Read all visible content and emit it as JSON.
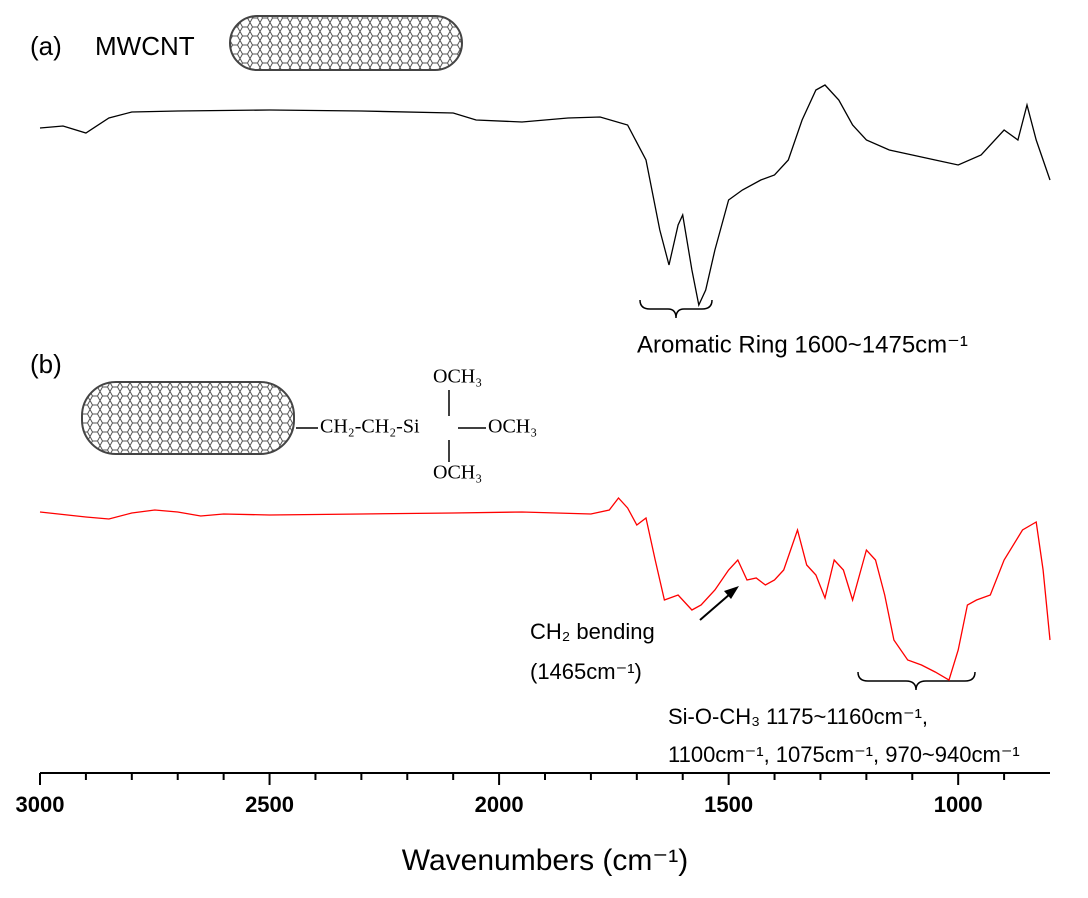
{
  "chart_data": {
    "type": "line",
    "xlabel": "Wavenumbers (cm⁻¹)",
    "xlim": [
      3000,
      800
    ],
    "xticks": [
      3000,
      2500,
      2000,
      1500,
      1000
    ],
    "xminorticks": [
      2900,
      2800,
      2700,
      2600,
      2400,
      2300,
      2200,
      2100,
      1900,
      1800,
      1700,
      1600,
      1400,
      1300,
      1200,
      1100,
      900
    ],
    "ylim": [
      0,
      680
    ],
    "panel_labels": [
      "(a)",
      "(b)"
    ],
    "sample_label": "MWCNT",
    "structure": {
      "top": "OCH₃",
      "chain": "CH₂-CH₂-Si",
      "right": "OCH₃",
      "bottom": "OCH₃"
    },
    "annotations": [
      "Aromatic Ring 1600~1475cm⁻¹",
      "CH₂ bending",
      "(1465cm⁻¹)",
      "Si-O-CH₃ 1175~1160cm⁻¹,",
      "1100cm⁻¹, 1075cm⁻¹, 970~940cm⁻¹"
    ],
    "series": [
      {
        "color": "#000000",
        "x": [
          3000,
          2950,
          2900,
          2850,
          2800,
          2700,
          2500,
          2300,
          2100,
          2050,
          1950,
          1850,
          1780,
          1720,
          1680,
          1650,
          1630,
          1610,
          1600,
          1580,
          1565,
          1550,
          1530,
          1500,
          1470,
          1430,
          1400,
          1370,
          1340,
          1310,
          1290,
          1260,
          1230,
          1200,
          1150,
          1100,
          1050,
          1000,
          950,
          900,
          870,
          850,
          830,
          800
        ],
        "values": [
          632,
          634,
          627,
          642,
          648,
          649,
          650,
          649,
          647,
          640,
          638,
          642,
          643,
          635,
          600,
          530,
          495,
          535,
          545,
          490,
          455,
          470,
          510,
          560,
          570,
          580,
          585,
          600,
          640,
          670,
          675,
          660,
          635,
          620,
          610,
          605,
          600,
          595,
          605,
          630,
          620,
          655,
          620,
          580
        ]
      },
      {
        "color": "#ff0000",
        "x": [
          3000,
          2900,
          2850,
          2800,
          2750,
          2700,
          2650,
          2600,
          2500,
          2300,
          2100,
          1950,
          1800,
          1760,
          1740,
          1720,
          1700,
          1680,
          1660,
          1640,
          1610,
          1580,
          1560,
          1530,
          1500,
          1480,
          1460,
          1440,
          1420,
          1400,
          1380,
          1350,
          1330,
          1310,
          1290,
          1270,
          1250,
          1230,
          1200,
          1180,
          1160,
          1140,
          1110,
          1080,
          1050,
          1020,
          1000,
          980,
          960,
          930,
          900,
          860,
          830,
          815,
          800
        ],
        "values": [
          248,
          243,
          241,
          247,
          250,
          248,
          244,
          246,
          245,
          246,
          247,
          248,
          246,
          250,
          262,
          252,
          235,
          242,
          200,
          160,
          165,
          150,
          155,
          170,
          190,
          200,
          180,
          182,
          175,
          180,
          190,
          230,
          195,
          185,
          162,
          200,
          190,
          160,
          210,
          200,
          165,
          120,
          100,
          95,
          88,
          80,
          110,
          155,
          160,
          165,
          200,
          230,
          238,
          190,
          120
        ]
      }
    ]
  }
}
